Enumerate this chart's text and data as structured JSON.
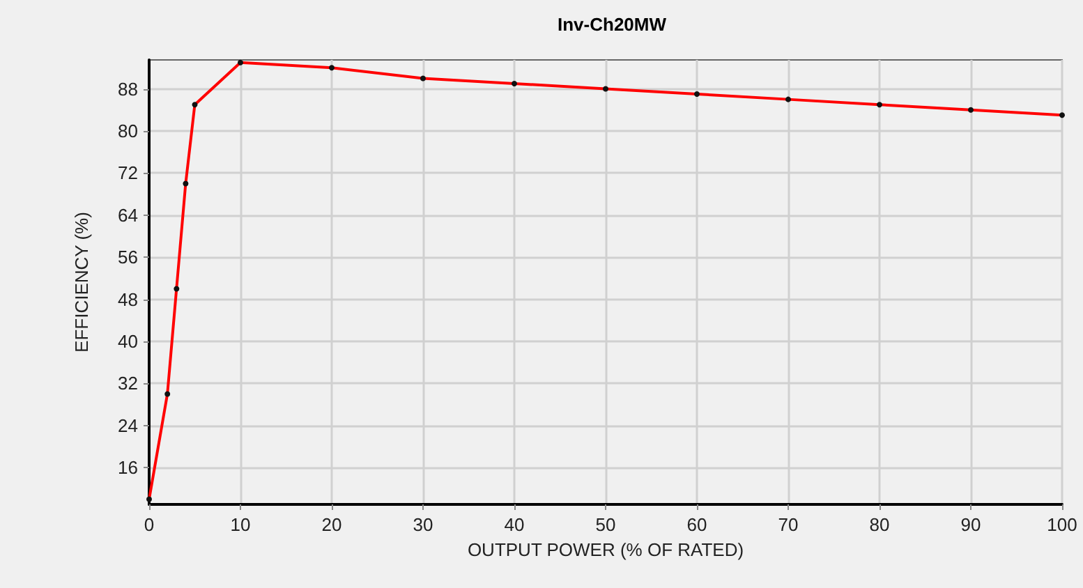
{
  "chart_data": {
    "type": "line",
    "title": "Inv-Ch20MW",
    "xlabel": "OUTPUT POWER (% OF RATED)",
    "ylabel": "EFFICIENCY (%)",
    "x": [
      0,
      2,
      3,
      4,
      5,
      10,
      20,
      30,
      40,
      50,
      60,
      70,
      80,
      90,
      100
    ],
    "series": [
      {
        "color": "#ff0000",
        "values": [
          10,
          30,
          50,
          70,
          85,
          93,
          92,
          90,
          89,
          88,
          87,
          86,
          85,
          84,
          83
        ]
      }
    ],
    "xlim": [
      0,
      100
    ],
    "xticks": [
      0,
      10,
      20,
      30,
      40,
      50,
      60,
      70,
      80,
      90,
      100
    ],
    "ylim": [
      9,
      93.5
    ],
    "yticks": [
      16,
      24,
      32,
      40,
      48,
      56,
      64,
      72,
      80,
      88
    ],
    "grid": true,
    "marker": "circle",
    "line_style": "solid"
  }
}
